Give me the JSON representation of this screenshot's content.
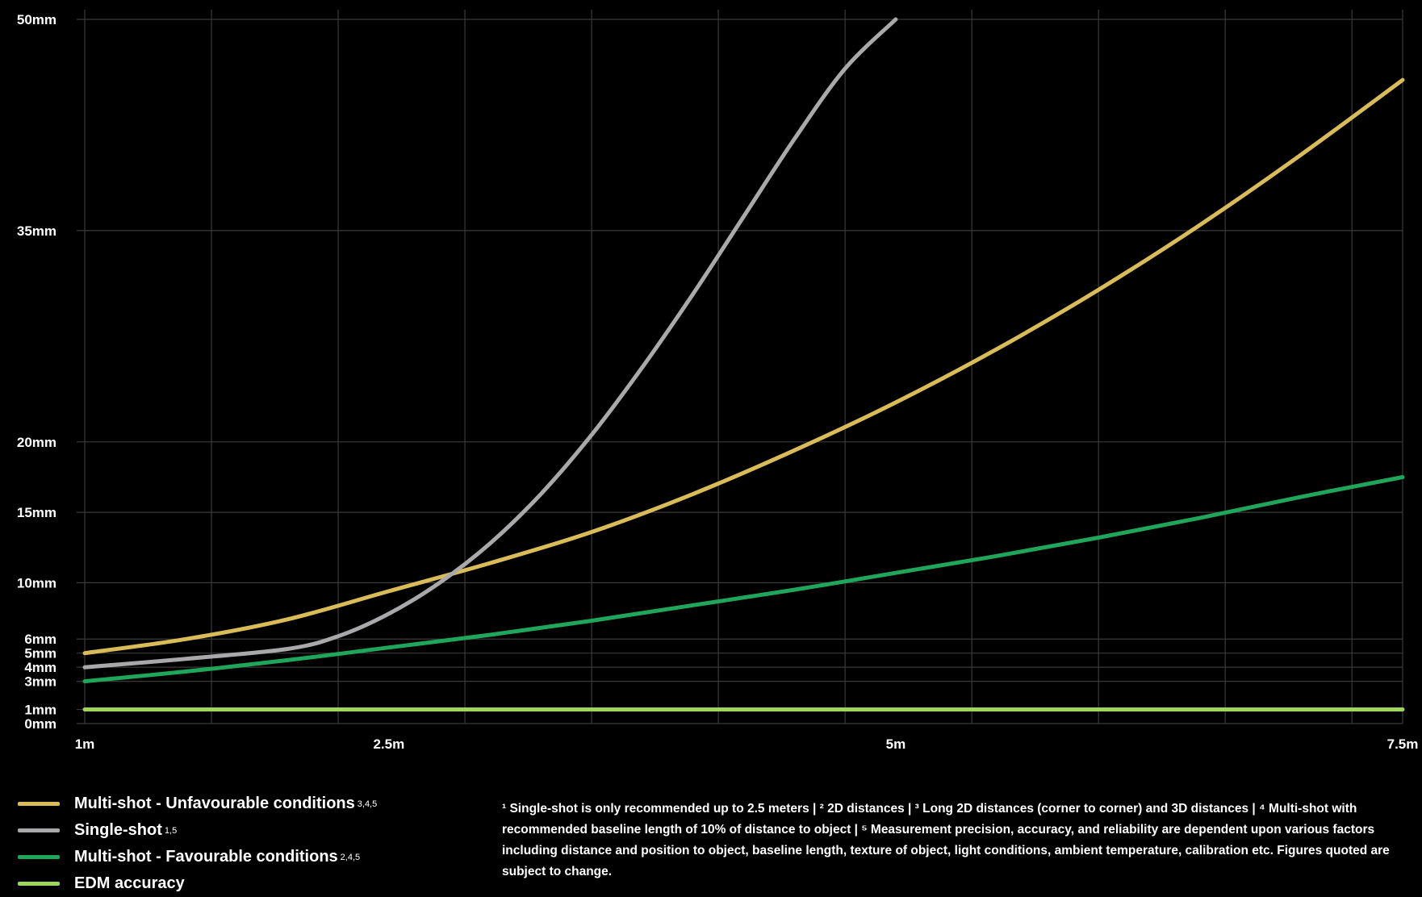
{
  "chart_data": {
    "type": "line",
    "title": "",
    "xlabel": "",
    "ylabel": "",
    "xlim": [
      1,
      7.5
    ],
    "ylim": [
      0,
      50
    ],
    "grid": true,
    "x_tick_labels": [
      {
        "value": 1,
        "label": "1m"
      },
      {
        "value": 2.5,
        "label": "2.5m"
      },
      {
        "value": 5,
        "label": "5m"
      },
      {
        "value": 7.5,
        "label": "7.5m"
      }
    ],
    "x_gridlines": [
      1,
      1.625,
      2.25,
      2.875,
      3.5,
      4.125,
      4.75,
      5.375,
      6,
      6.625,
      7.25,
      7.5
    ],
    "y_tick_labels": [
      {
        "value": 0,
        "label": "0mm"
      },
      {
        "value": 1,
        "label": "1mm"
      },
      {
        "value": 3,
        "label": "3mm"
      },
      {
        "value": 4,
        "label": "4mm"
      },
      {
        "value": 5,
        "label": "5mm"
      },
      {
        "value": 6,
        "label": "6mm"
      },
      {
        "value": 10,
        "label": "10mm"
      },
      {
        "value": 15,
        "label": "15mm"
      },
      {
        "value": 20,
        "label": "20mm"
      },
      {
        "value": 35,
        "label": "35mm"
      },
      {
        "value": 50,
        "label": "50mm"
      }
    ],
    "legend_position": "bottom-left",
    "series": [
      {
        "name": "Multi-shot - Unfavourable conditions",
        "sup": "3,4,5",
        "color": "#d9bb57",
        "x": [
          1,
          1.5,
          2,
          2.5,
          3,
          3.5,
          4,
          4.5,
          5,
          5.5,
          6,
          6.5,
          7,
          7.5
        ],
        "y": [
          5,
          6,
          7.4,
          9.4,
          11.4,
          13.6,
          16.3,
          19.4,
          22.8,
          26.6,
          30.8,
          35.4,
          40.4,
          45.7
        ]
      },
      {
        "name": "Single-shot",
        "sup": "1,5",
        "color": "#a9a9ab",
        "x": [
          1,
          1.5,
          2,
          2.25,
          2.5,
          2.75,
          3,
          3.25,
          3.5,
          3.75,
          4,
          4.25,
          4.5,
          4.75,
          5
        ],
        "y": [
          4,
          4.6,
          5.3,
          6.2,
          7.8,
          10,
          12.8,
          16.3,
          20.5,
          25.3,
          30.5,
          36,
          41.5,
          46.5,
          50
        ]
      },
      {
        "name": "Multi-shot - Favourable conditions",
        "sup": "2,4,5",
        "color": "#1fa65a",
        "x": [
          1,
          1.5,
          2,
          2.5,
          3,
          3.5,
          4,
          4.5,
          5,
          5.5,
          6,
          6.5,
          7,
          7.5
        ],
        "y": [
          3,
          3.7,
          4.5,
          5.4,
          6.3,
          7.3,
          8.4,
          9.5,
          10.7,
          11.9,
          13.2,
          14.6,
          16.1,
          17.5
        ]
      },
      {
        "name": "EDM accuracy",
        "sup": "",
        "color": "#9ed65c",
        "x": [
          1,
          7.5
        ],
        "y": [
          1,
          1
        ]
      }
    ]
  },
  "footnote": "¹ Single-shot is only recommended up to 2.5 meters | ² 2D distances | ³ Long 2D distances (corner to corner) and 3D distances | ⁴ Multi-shot with recommended baseline length of 10% of distance to object | ⁵ Measurement precision, accuracy, and reliability are dependent upon various factors including distance and position to object, baseline length, texture of object, light conditions, ambient temperature, calibration etc. Figures quoted are subject to change."
}
